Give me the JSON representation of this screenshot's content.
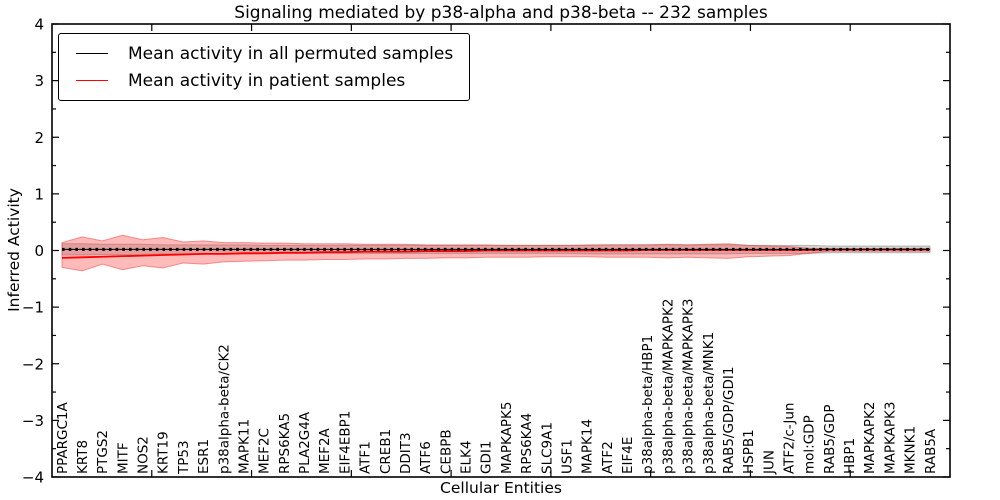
{
  "chart_data": {
    "type": "line",
    "title": "Signaling mediated by p38-alpha and p38-beta -- 232 samples",
    "xlabel": "Cellular Entities",
    "ylabel": "Inferred Activity",
    "ylim": [
      -4,
      4
    ],
    "yticks": [
      4,
      3,
      2,
      1,
      0,
      -1,
      -2,
      -3,
      -4
    ],
    "grid": false,
    "legend_position": "upper left",
    "categories": [
      "PPARGC1A",
      "KRT8",
      "PTGS2",
      "MITF",
      "NOS2",
      "KRT19",
      "TP53",
      "ESR1",
      "p38alpha-beta/CK2",
      "MAPK11",
      "MEF2C",
      "RPS6KA5",
      "PLA2G4A",
      "MEF2A",
      "EIF4EBP1",
      "ATF1",
      "CREB1",
      "DDIT3",
      "ATF6",
      "CEBPB",
      "ELK4",
      "GDI1",
      "MAPKAPK5",
      "RPS6KA4",
      "SLC9A1",
      "USF1",
      "MAPK14",
      "ATF2",
      "EIF4E",
      "p38alpha-beta/HBP1",
      "p38alpha-beta/MAPKAPK2",
      "p38alpha-beta/MAPKAPK3",
      "p38alpha-beta/MNK1",
      "RAB5/GDP/GDI1",
      "HSPB1",
      "JUN",
      "ATF2/c-Jun",
      "mol:GDP",
      "RAB5/GDP",
      "HBP1",
      "MAPKAPK2",
      "MAPKAPK3",
      "MKNK1",
      "RAB5A"
    ],
    "series": [
      {
        "name": "Mean activity in all permuted samples",
        "color": "#000000",
        "band_fill": "rgba(165,165,165,0.45)",
        "band_edge": "rgba(135,135,135,0.55)",
        "values": [
          0.02,
          0.02,
          0.02,
          0.02,
          0.02,
          0.02,
          0.02,
          0.02,
          0.02,
          0.02,
          0.02,
          0.02,
          0.02,
          0.02,
          0.02,
          0.02,
          0.02,
          0.02,
          0.02,
          0.02,
          0.02,
          0.02,
          0.02,
          0.02,
          0.02,
          0.02,
          0.02,
          0.02,
          0.02,
          0.02,
          0.02,
          0.02,
          0.02,
          0.02,
          0.02,
          0.02,
          0.02,
          0.02,
          0.02,
          0.02,
          0.02,
          0.02,
          0.02,
          0.02
        ],
        "band_upper": [
          0.12,
          0.12,
          0.11,
          0.11,
          0.11,
          0.1,
          0.1,
          0.1,
          0.1,
          0.1,
          0.09,
          0.09,
          0.09,
          0.09,
          0.09,
          0.09,
          0.09,
          0.09,
          0.09,
          0.09,
          0.09,
          0.09,
          0.09,
          0.09,
          0.09,
          0.09,
          0.1,
          0.1,
          0.1,
          0.1,
          0.1,
          0.1,
          0.1,
          0.1,
          0.09,
          0.09,
          0.09,
          0.09,
          0.08,
          0.08,
          0.08,
          0.08,
          0.08,
          0.08
        ],
        "band_lower": [
          -0.08,
          -0.08,
          -0.07,
          -0.07,
          -0.07,
          -0.06,
          -0.06,
          -0.06,
          -0.06,
          -0.06,
          -0.05,
          -0.05,
          -0.05,
          -0.05,
          -0.05,
          -0.05,
          -0.05,
          -0.05,
          -0.05,
          -0.05,
          -0.05,
          -0.05,
          -0.05,
          -0.05,
          -0.05,
          -0.05,
          -0.06,
          -0.06,
          -0.06,
          -0.06,
          -0.06,
          -0.06,
          -0.06,
          -0.06,
          -0.05,
          -0.05,
          -0.05,
          -0.05,
          -0.04,
          -0.04,
          -0.04,
          -0.04,
          -0.04,
          -0.04
        ]
      },
      {
        "name": "Mean activity in patient samples",
        "color": "#ff0000",
        "band_fill": "rgba(255,45,45,0.33)",
        "band_edge": "rgba(232,55,55,0.5)",
        "values": [
          -0.13,
          -0.12,
          -0.11,
          -0.1,
          -0.09,
          -0.08,
          -0.07,
          -0.06,
          -0.06,
          -0.05,
          -0.05,
          -0.04,
          -0.04,
          -0.03,
          -0.03,
          -0.02,
          -0.02,
          -0.02,
          -0.01,
          -0.01,
          -0.01,
          0.0,
          0.0,
          0.0,
          0.0,
          0.0,
          0.0,
          0.0,
          0.0,
          0.01,
          0.01,
          0.01,
          0.01,
          0.01,
          0.01,
          0.01,
          0.01,
          0.01,
          0.02,
          0.02,
          0.02,
          0.02,
          0.02,
          0.02
        ],
        "band_upper": [
          0.14,
          0.24,
          0.17,
          0.27,
          0.19,
          0.23,
          0.15,
          0.17,
          0.14,
          0.14,
          0.13,
          0.13,
          0.12,
          0.12,
          0.12,
          0.11,
          0.11,
          0.11,
          0.1,
          0.1,
          0.1,
          0.1,
          0.09,
          0.09,
          0.09,
          0.09,
          0.09,
          0.1,
          0.1,
          0.1,
          0.11,
          0.1,
          0.11,
          0.12,
          0.09,
          0.08,
          0.07,
          0.04,
          0.03,
          0.03,
          0.03,
          0.03,
          0.03,
          0.03
        ],
        "band_lower": [
          -0.3,
          -0.36,
          -0.24,
          -0.34,
          -0.27,
          -0.31,
          -0.22,
          -0.24,
          -0.2,
          -0.19,
          -0.18,
          -0.17,
          -0.17,
          -0.16,
          -0.16,
          -0.15,
          -0.15,
          -0.14,
          -0.14,
          -0.13,
          -0.13,
          -0.12,
          -0.12,
          -0.12,
          -0.11,
          -0.11,
          -0.11,
          -0.12,
          -0.12,
          -0.12,
          -0.13,
          -0.12,
          -0.13,
          -0.14,
          -0.11,
          -0.1,
          -0.09,
          -0.05,
          -0.01,
          -0.01,
          -0.01,
          -0.01,
          -0.01,
          -0.01
        ]
      }
    ]
  }
}
